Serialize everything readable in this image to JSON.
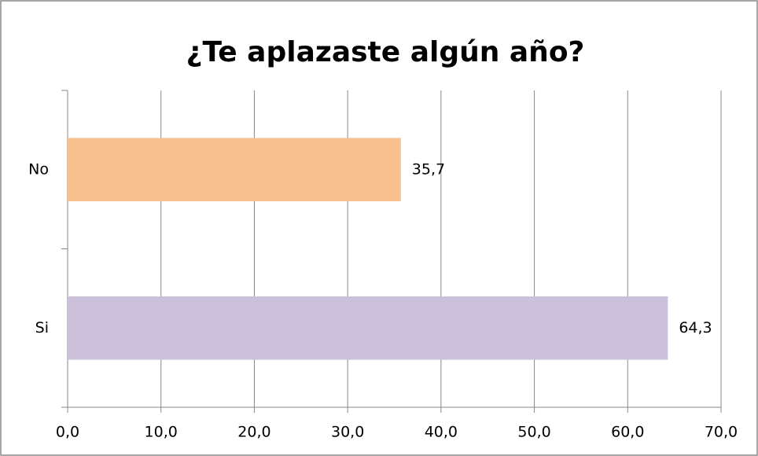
{
  "chart_data": {
    "type": "barh",
    "title": "¿Te aplazaste algún año?",
    "categories": [
      "No",
      "Si"
    ],
    "values": [
      35.7,
      64.3
    ],
    "value_labels": [
      "35,7",
      "64,3"
    ],
    "colors": [
      "#f9c08f",
      "#ccc1da"
    ],
    "xlim": [
      0,
      70
    ],
    "xticks": [
      {
        "value": 0,
        "label": "0,0"
      },
      {
        "value": 10,
        "label": "10,0"
      },
      {
        "value": 20,
        "label": "20,0"
      },
      {
        "value": 30,
        "label": "30,0"
      },
      {
        "value": 40,
        "label": "40,0"
      },
      {
        "value": 50,
        "label": "50,0"
      },
      {
        "value": 60,
        "label": "60,0"
      },
      {
        "value": 70,
        "label": "70,0"
      }
    ],
    "grid": true
  }
}
